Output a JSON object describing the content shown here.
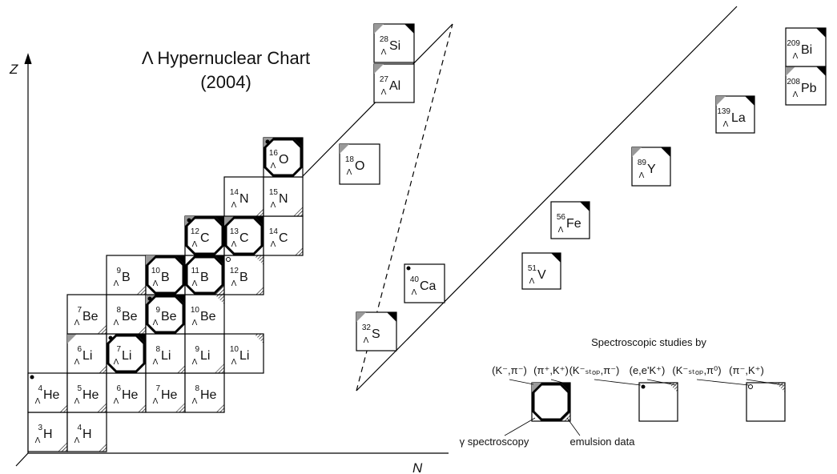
{
  "title": "Λ Hypernuclear Chart",
  "subtitle": "(2004)",
  "axis_z": "Z",
  "axis_n": "N",
  "lambda": "Λ",
  "nuclei": [
    {
      "mass": "3",
      "symbol": "H"
    },
    {
      "mass": "4",
      "symbol": "H"
    },
    {
      "mass": "4",
      "symbol": "He"
    },
    {
      "mass": "5",
      "symbol": "He"
    },
    {
      "mass": "6",
      "symbol": "He"
    },
    {
      "mass": "7",
      "symbol": "He"
    },
    {
      "mass": "8",
      "symbol": "He"
    },
    {
      "mass": "6",
      "symbol": "Li"
    },
    {
      "mass": "7",
      "symbol": "Li"
    },
    {
      "mass": "8",
      "symbol": "Li"
    },
    {
      "mass": "9",
      "symbol": "Li"
    },
    {
      "mass": "10",
      "symbol": "Li"
    },
    {
      "mass": "7",
      "symbol": "Be"
    },
    {
      "mass": "8",
      "symbol": "Be"
    },
    {
      "mass": "9",
      "symbol": "Be"
    },
    {
      "mass": "10",
      "symbol": "Be"
    },
    {
      "mass": "9",
      "symbol": "B"
    },
    {
      "mass": "10",
      "symbol": "B"
    },
    {
      "mass": "11",
      "symbol": "B"
    },
    {
      "mass": "12",
      "symbol": "B"
    },
    {
      "mass": "12",
      "symbol": "C"
    },
    {
      "mass": "13",
      "symbol": "C"
    },
    {
      "mass": "14",
      "symbol": "C"
    },
    {
      "mass": "14",
      "symbol": "N"
    },
    {
      "mass": "15",
      "symbol": "N"
    },
    {
      "mass": "16",
      "symbol": "O"
    },
    {
      "mass": "18",
      "symbol": "O"
    },
    {
      "mass": "28",
      "symbol": "Si"
    },
    {
      "mass": "27",
      "symbol": "Al"
    },
    {
      "mass": "32",
      "symbol": "S"
    },
    {
      "mass": "40",
      "symbol": "Ca"
    },
    {
      "mass": "51",
      "symbol": "V"
    },
    {
      "mass": "56",
      "symbol": "Fe"
    },
    {
      "mass": "89",
      "symbol": "Y"
    },
    {
      "mass": "139",
      "symbol": "La"
    },
    {
      "mass": "208",
      "symbol": "Pb"
    },
    {
      "mass": "209",
      "symbol": "Bi"
    }
  ],
  "legend": {
    "title": "Spectroscopic studies by",
    "reactions": [
      "(K⁻,π⁻)",
      "(π⁺,K⁺)",
      "(K⁻ₛₜₒₚ,π⁻)",
      "(e,e'K⁺)",
      "(K⁻ₛₜₒₚ,π⁰)",
      "(π⁻,K⁺)"
    ],
    "gamma": "γ spectroscopy",
    "emulsion": "emulsion data"
  }
}
